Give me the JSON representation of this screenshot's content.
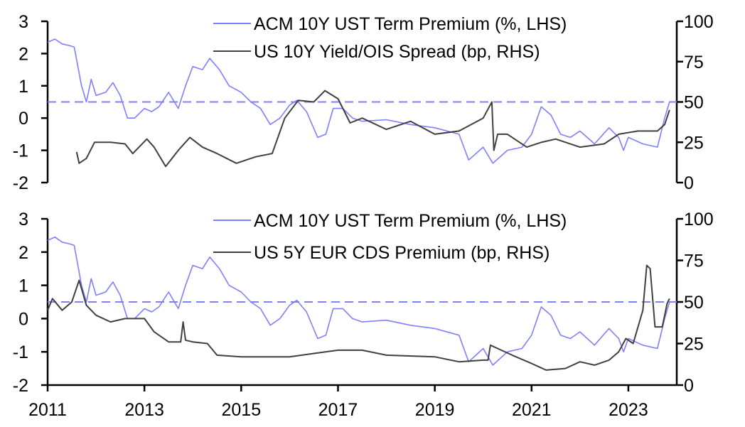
{
  "colors": {
    "term_premium": "#7f7fff",
    "dark_series": "#404040",
    "axis": "#000000"
  },
  "chart_data": [
    {
      "type": "line",
      "panel": "top",
      "xlim": [
        2011,
        2024
      ],
      "x_ticks": [
        "2011",
        "2013",
        "2015",
        "2017",
        "2019",
        "2021",
        "2023"
      ],
      "ylim_left": [
        -2,
        3
      ],
      "left_ticks": [
        "3",
        "2",
        "1",
        "0",
        "-1",
        "-2"
      ],
      "ylim_right": [
        0,
        100
      ],
      "right_ticks": [
        "100",
        "75",
        "50",
        "25",
        "0"
      ],
      "reference_line": {
        "axis": "right",
        "value": 50,
        "style": "dashed"
      },
      "legend": "top-right",
      "series": [
        {
          "name": "ACM 10Y UST Term Premium (%, LHS)",
          "axis": "left",
          "color": "#7f7fff",
          "x": [
            2011.0,
            2011.15,
            2011.3,
            2011.45,
            2011.55,
            2011.7,
            2011.8,
            2011.9,
            2012.0,
            2012.2,
            2012.35,
            2012.5,
            2012.65,
            2012.8,
            2013.0,
            2013.15,
            2013.3,
            2013.5,
            2013.7,
            2013.85,
            2014.0,
            2014.2,
            2014.35,
            2014.55,
            2014.75,
            2015.0,
            2015.2,
            2015.4,
            2015.6,
            2015.8,
            2016.0,
            2016.15,
            2016.35,
            2016.58,
            2016.75,
            2016.9,
            2017.1,
            2017.3,
            2017.5,
            2018.0,
            2018.5,
            2019.0,
            2019.5,
            2019.7,
            2020.0,
            2020.2,
            2020.5,
            2020.8,
            2021.0,
            2021.2,
            2021.4,
            2021.6,
            2021.8,
            2022.0,
            2022.3,
            2022.6,
            2022.8,
            2022.9,
            2023.0,
            2023.3,
            2023.6,
            2023.75,
            2023.85
          ],
          "y": [
            2.35,
            2.45,
            2.3,
            2.25,
            2.2,
            1.0,
            0.5,
            1.2,
            0.7,
            0.8,
            1.1,
            0.7,
            0.0,
            0.0,
            0.3,
            0.2,
            0.35,
            0.8,
            0.3,
            1.0,
            1.6,
            1.5,
            1.85,
            1.5,
            1.0,
            0.8,
            0.5,
            0.3,
            -0.2,
            0.0,
            0.4,
            0.55,
            0.2,
            -0.6,
            -0.5,
            0.3,
            0.3,
            0.0,
            -0.1,
            -0.05,
            -0.2,
            -0.3,
            -0.5,
            -1.3,
            -0.9,
            -1.4,
            -1.0,
            -0.9,
            -0.5,
            0.35,
            0.1,
            -0.5,
            -0.6,
            -0.4,
            -0.8,
            -0.3,
            -0.6,
            -1.0,
            -0.6,
            -0.8,
            -0.9,
            0.0,
            0.5
          ]
        },
        {
          "name": "US 10Y Yield/OIS Spread (bp, RHS)",
          "axis": "right",
          "color": "#404040",
          "x": [
            2011.6,
            2011.65,
            2011.8,
            2011.97,
            2012.3,
            2012.6,
            2012.76,
            2013.05,
            2013.2,
            2013.44,
            2013.7,
            2013.94,
            2014.2,
            2014.5,
            2014.9,
            2015.3,
            2015.64,
            2015.9,
            2016.18,
            2016.5,
            2016.73,
            2017.0,
            2017.25,
            2017.5,
            2018.0,
            2018.5,
            2019.0,
            2019.5,
            2020.0,
            2020.18,
            2020.22,
            2020.3,
            2020.5,
            2020.9,
            2021.2,
            2021.5,
            2022.0,
            2022.5,
            2022.8,
            2023.2,
            2023.6,
            2023.75,
            2023.85
          ],
          "y": [
            19,
            12,
            15,
            25,
            25,
            24,
            18,
            27,
            22,
            10,
            20,
            28,
            22,
            18,
            12,
            16,
            18,
            40,
            51,
            50,
            57,
            52,
            37,
            40,
            33,
            38,
            30,
            32,
            40,
            50,
            20,
            30,
            30,
            22,
            25,
            27,
            22,
            24,
            30,
            32,
            32,
            36,
            45
          ]
        }
      ]
    },
    {
      "type": "line",
      "panel": "bottom",
      "xlim": [
        2011,
        2024
      ],
      "x_ticks": [
        "2011",
        "2013",
        "2015",
        "2017",
        "2019",
        "2021",
        "2023"
      ],
      "ylim_left": [
        -2,
        3
      ],
      "left_ticks": [
        "3",
        "2",
        "1",
        "0",
        "-1",
        "-2"
      ],
      "ylim_right": [
        0,
        100
      ],
      "right_ticks": [
        "100",
        "75",
        "50",
        "25",
        "0"
      ],
      "reference_line": {
        "axis": "right",
        "value": 50,
        "style": "dashed"
      },
      "legend": "top-right",
      "series": [
        {
          "name": "ACM 10Y UST Term Premium (%, LHS)",
          "axis": "left",
          "color": "#7f7fff",
          "same_as": "top"
        },
        {
          "name": "US 5Y EUR CDS Premium (bp, RHS)",
          "axis": "right",
          "color": "#404040",
          "x": [
            2011.0,
            2011.1,
            2011.3,
            2011.5,
            2011.65,
            2011.8,
            2012.0,
            2012.3,
            2012.6,
            2013.0,
            2013.2,
            2013.5,
            2013.75,
            2013.8,
            2013.85,
            2014.0,
            2014.3,
            2014.5,
            2015.0,
            2016.0,
            2016.5,
            2017.0,
            2017.5,
            2018.0,
            2019.0,
            2019.5,
            2020.0,
            2020.1,
            2020.15,
            2020.3,
            2020.6,
            2021.0,
            2021.3,
            2021.7,
            2022.0,
            2022.3,
            2022.6,
            2022.8,
            2022.95,
            2023.1,
            2023.3,
            2023.38,
            2023.45,
            2023.55,
            2023.7,
            2023.8,
            2023.85
          ],
          "y": [
            45,
            52,
            45,
            50,
            63,
            48,
            42,
            38,
            40,
            40,
            32,
            26,
            26,
            38,
            27,
            26,
            25,
            18,
            17,
            17,
            19,
            21,
            21,
            18,
            17,
            14,
            15,
            15,
            24,
            22,
            18,
            13,
            9,
            10,
            14,
            12,
            15,
            20,
            28,
            25,
            45,
            72,
            70,
            35,
            35,
            49,
            52
          ]
        }
      ]
    }
  ]
}
